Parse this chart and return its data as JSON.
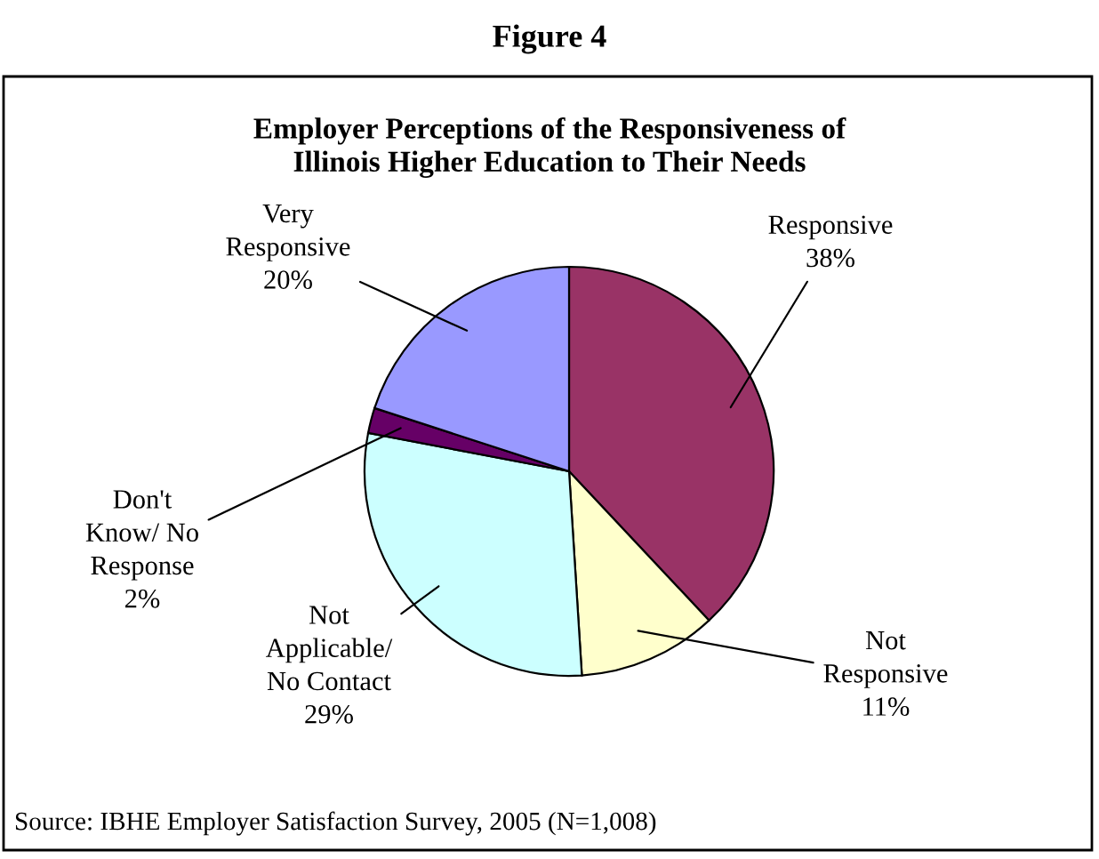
{
  "chart_data": {
    "type": "pie",
    "title": "Employer Perceptions of the Responsiveness of\nIllinois Higher Education to Their Needs",
    "subtitle": "Figure 4",
    "categories": [
      "Responsive",
      "Not\nResponsive",
      "Not\nApplicable/\nNo Contact",
      "Don't\nKnow/ No\nResponse",
      "Very\nResponsive"
    ],
    "values": [
      38,
      11,
      29,
      2,
      20
    ],
    "value_labels": [
      "38%",
      "11%",
      "29%",
      "2%",
      "20%"
    ],
    "colors": [
      "#993366",
      "#ffffcc",
      "#ccffff",
      "#660066",
      "#9999ff"
    ],
    "annotations": [
      "Source: IBHE Employer Satisfaction Survey, 2005 (N=1,008)"
    ],
    "legend": false
  }
}
